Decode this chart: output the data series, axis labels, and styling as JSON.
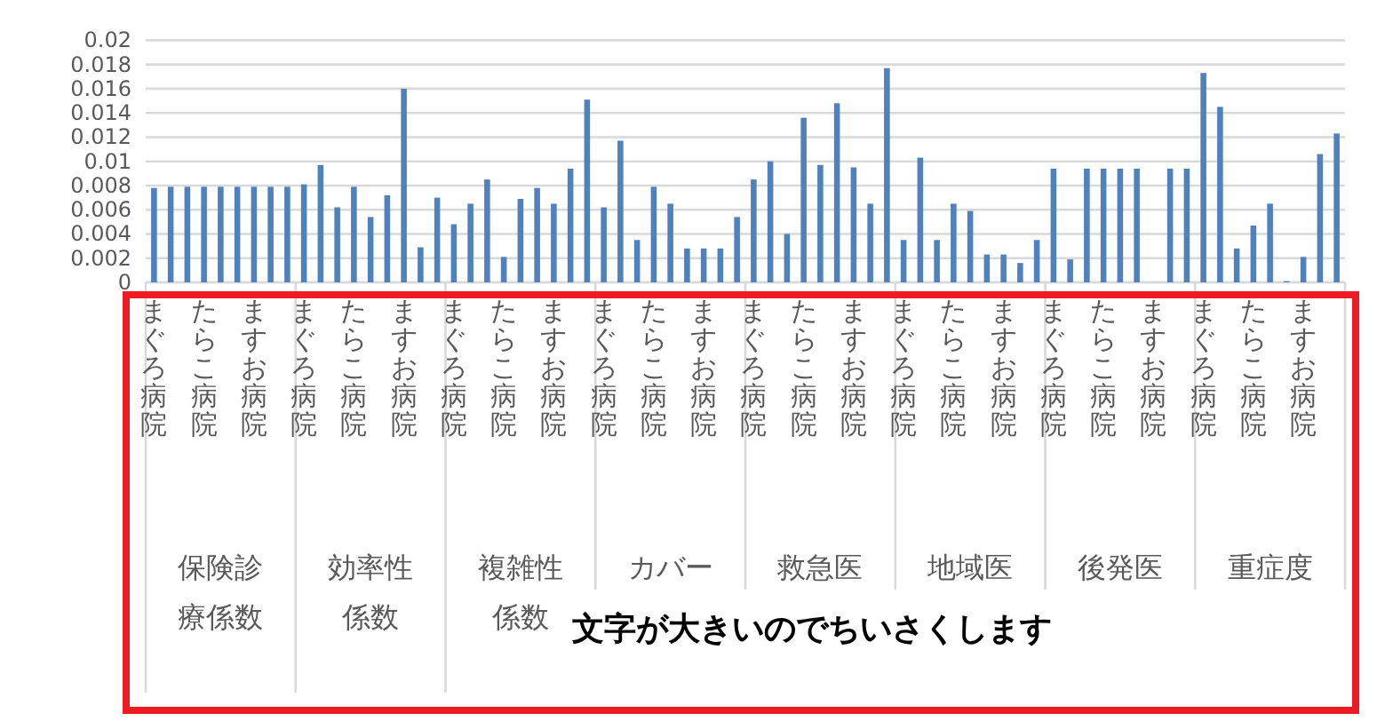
{
  "chart_data": {
    "type": "bar",
    "categories": [
      "まぐろ病院",
      null,
      null,
      "たらこ病院",
      null,
      null,
      "ますお病院",
      null,
      null,
      "まぐろ病院",
      null,
      null,
      "たらこ病院",
      null,
      null,
      "ますお病院",
      null,
      null,
      "まぐろ病院",
      null,
      null,
      "たらこ病院",
      null,
      null,
      "ますお病院",
      null,
      null,
      "まぐろ病院",
      null,
      null,
      "たらこ病院",
      null,
      null,
      "ますお病院",
      null,
      null,
      "まぐろ病院",
      null,
      null,
      "たらこ病院",
      null,
      null,
      "ますお病院",
      null,
      null,
      "まぐろ病院",
      null,
      null,
      "たらこ病院",
      null,
      null,
      "ますお病院",
      null,
      null,
      "まぐろ病院",
      null,
      null,
      "たらこ病院",
      null,
      null,
      "ますお病院",
      null,
      null,
      "まぐろ病院",
      null,
      null,
      "たらこ病院",
      null,
      null,
      "ますお病院",
      null,
      null
    ],
    "values": [
      0.0078,
      0.0079,
      0.0079,
      0.0079,
      0.0079,
      0.0079,
      0.0079,
      0.0079,
      0.0079,
      0.0081,
      0.0097,
      0.0062,
      0.0079,
      0.0054,
      0.0072,
      0.016,
      0.0029,
      0.007,
      0.0048,
      0.0065,
      0.0085,
      0.0021,
      0.0069,
      0.0078,
      0.0065,
      0.0094,
      0.0151,
      0.0062,
      0.0117,
      0.0035,
      0.0079,
      0.0065,
      0.0028,
      0.0028,
      0.0028,
      0.0054,
      0.0085,
      0.01,
      0.004,
      0.0136,
      0.0097,
      0.0148,
      0.0095,
      0.0065,
      0.0177,
      0.0035,
      0.0103,
      0.0035,
      0.0065,
      0.0059,
      0.0023,
      0.0023,
      0.0016,
      0.0035,
      0.0094,
      0.0019,
      0.0094,
      0.0094,
      0.0094,
      0.0094,
      null,
      0.0094,
      0.0094,
      0.0173,
      0.0145,
      0.0028,
      0.0047,
      0.0065,
      0.0001,
      0.0021,
      0.0106,
      0.0123
    ],
    "color": "#4f81bd",
    "ylim": [
      0,
      0.02
    ],
    "yticks": [
      0,
      0.002,
      0.004,
      0.006,
      0.008,
      0.01,
      0.012,
      0.014,
      0.016,
      0.018,
      0.02
    ],
    "grid": "y",
    "annotations": [
      "保険診療係数",
      "効率性係数",
      "複雑性係数",
      "カバー",
      "救急医",
      "地域医",
      "後発医",
      "重症度",
      "文字が大きいのでちいさくします"
    ]
  }
}
